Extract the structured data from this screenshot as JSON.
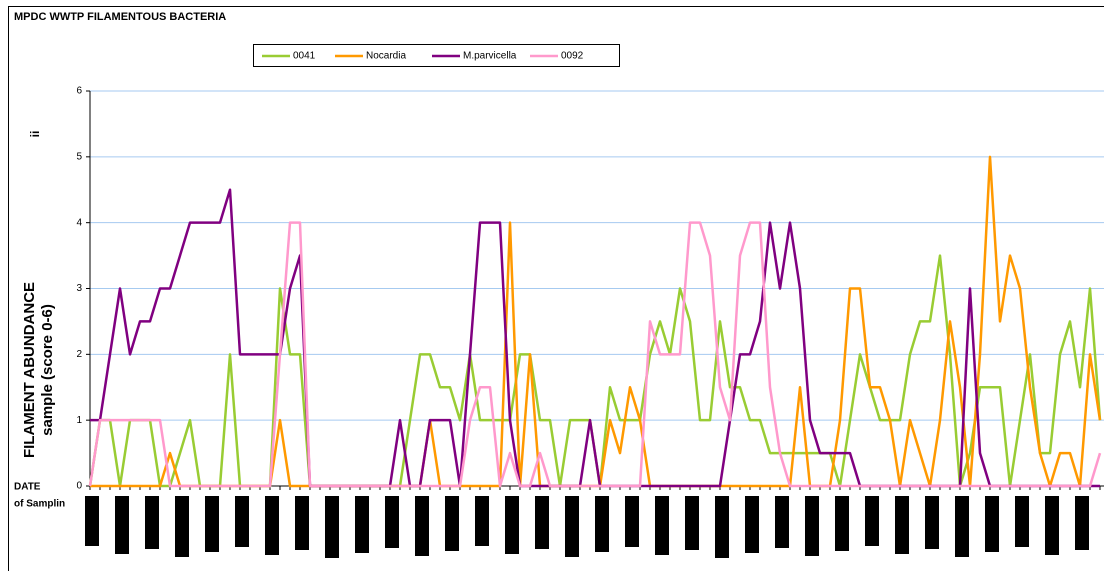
{
  "chart_data": {
    "type": "line",
    "title": "MPDC WWTP FILAMENTOUS BACTERIA",
    "y_label": [
      "FILAMENT ABUNDANCE",
      "sample (score 0-6)"
    ],
    "y_label_mark": "ii",
    "x_label": [
      "DATE",
      "of Samplin"
    ],
    "ylim": [
      0,
      6
    ],
    "yticks": [
      0,
      1,
      2,
      3,
      4,
      5,
      6
    ],
    "grid": true,
    "categories": [
      null,
      null,
      null,
      null,
      null,
      null,
      null,
      null,
      null,
      null,
      null,
      null,
      null,
      null,
      null,
      null,
      null,
      null,
      null,
      null,
      null,
      null,
      null,
      null,
      null,
      null,
      null,
      null,
      null,
      null,
      null,
      null,
      null,
      null,
      null,
      null,
      null,
      null,
      null,
      null,
      null,
      null,
      null,
      null,
      null,
      null,
      null,
      null,
      null,
      null,
      null,
      null,
      null,
      null,
      null,
      null,
      null,
      null,
      null,
      null,
      null,
      null,
      null,
      null,
      null,
      null,
      null,
      null,
      null,
      null,
      null,
      null,
      null,
      null,
      null,
      null,
      null,
      null,
      null,
      null,
      null,
      null,
      null,
      null,
      null,
      null,
      null,
      null,
      null,
      null,
      null,
      null,
      null,
      null,
      null,
      null,
      null,
      null,
      null,
      null,
      null,
      null
    ],
    "series": [
      {
        "name": "0041",
        "color": "#99cc33",
        "values": [
          0,
          1,
          1,
          0,
          1,
          1,
          1,
          0,
          0,
          0.5,
          1,
          0,
          0,
          0,
          2,
          0,
          0,
          0,
          0,
          3,
          2,
          2,
          0,
          0,
          0,
          0,
          0,
          0,
          0,
          0,
          0,
          0,
          1,
          2,
          2,
          1.5,
          1.5,
          1,
          2,
          1,
          1,
          1,
          1,
          2,
          2,
          1,
          1,
          0,
          1,
          1,
          1,
          0,
          1.5,
          1,
          1,
          1,
          2,
          2.5,
          2,
          3,
          2.5,
          1,
          1,
          2.5,
          1.5,
          1.5,
          1,
          1,
          0.5,
          0.5,
          0.5,
          0.5,
          0.5,
          0.5,
          0.5,
          0,
          1,
          2,
          1.5,
          1,
          1,
          1,
          2,
          2.5,
          2.5,
          3.5,
          2,
          0,
          0.5,
          1.5,
          1.5,
          1.5,
          0,
          1,
          2,
          0.5,
          0.5,
          2,
          2.5,
          1.5,
          3,
          1
        ]
      },
      {
        "name": "Nocardia",
        "color": "#ff9900",
        "values": [
          0,
          0,
          0,
          0,
          0,
          0,
          0,
          0,
          0.5,
          0,
          0,
          0,
          0,
          0,
          0,
          0,
          0,
          0,
          0,
          1,
          0,
          0,
          0,
          0,
          0,
          0,
          0,
          0,
          0,
          0,
          0,
          0,
          0,
          0,
          1,
          0,
          0,
          0,
          0,
          0,
          0,
          0,
          4,
          0,
          2,
          0,
          0,
          0,
          0,
          0,
          0,
          0,
          1,
          0.5,
          1.5,
          1,
          0,
          0,
          0,
          0,
          0,
          0,
          0,
          0,
          0,
          0,
          0,
          0,
          0,
          0,
          0,
          1.5,
          0,
          0,
          0,
          1,
          3,
          3,
          1.5,
          1.5,
          1,
          0,
          1,
          0.5,
          0,
          1,
          2.5,
          1.5,
          0,
          2,
          5,
          2.5,
          3.5,
          3,
          1.5,
          0.5,
          0,
          0.5,
          0.5,
          0,
          2,
          1
        ]
      },
      {
        "name": "M.parvicella",
        "color": "#800080",
        "values": [
          1,
          1,
          2,
          3,
          2,
          2.5,
          2.5,
          3,
          3,
          3.5,
          4,
          4,
          4,
          4,
          4.5,
          2,
          2,
          2,
          2,
          2,
          3,
          3.5,
          0,
          0,
          0,
          0,
          0,
          0,
          0,
          0,
          0,
          1,
          0,
          0,
          1,
          1,
          1,
          0,
          2,
          4,
          4,
          4,
          1,
          0,
          0,
          0,
          0,
          0,
          0,
          0,
          1,
          0,
          0,
          0,
          0,
          0,
          0,
          0,
          0,
          0,
          0,
          0,
          0,
          0,
          1,
          2,
          2,
          2.5,
          4,
          3,
          4,
          3,
          1,
          0.5,
          0.5,
          0.5,
          0.5,
          0,
          0,
          0,
          0,
          0,
          0,
          0,
          0,
          0,
          0,
          0,
          3,
          0.5,
          0,
          0,
          0,
          0,
          0,
          0,
          0,
          0,
          0,
          0,
          0,
          0
        ]
      },
      {
        "name": "0092",
        "color": "#ff99cc",
        "values": [
          0,
          1,
          1,
          1,
          1,
          1,
          1,
          1,
          0,
          0,
          0,
          0,
          0,
          0,
          0,
          0,
          0,
          0,
          0,
          2,
          4,
          4,
          0,
          0,
          0,
          0,
          0,
          0,
          0,
          0,
          0,
          0,
          0,
          0,
          0,
          0,
          0,
          0,
          1,
          1.5,
          1.5,
          0,
          0.5,
          0,
          0,
          0.5,
          0,
          0,
          0,
          0,
          0,
          0,
          0,
          0,
          0,
          0,
          2.5,
          2,
          2,
          2,
          4,
          4,
          3.5,
          1.5,
          1,
          3.5,
          4,
          4,
          1.5,
          0.5,
          0,
          0,
          0,
          0,
          0,
          0,
          0,
          0,
          0,
          0,
          0,
          0,
          0,
          0,
          0,
          0,
          0,
          0,
          0,
          0,
          0,
          0,
          0,
          0,
          0,
          0,
          0,
          0,
          0,
          0,
          0,
          0.5
        ]
      }
    ]
  }
}
